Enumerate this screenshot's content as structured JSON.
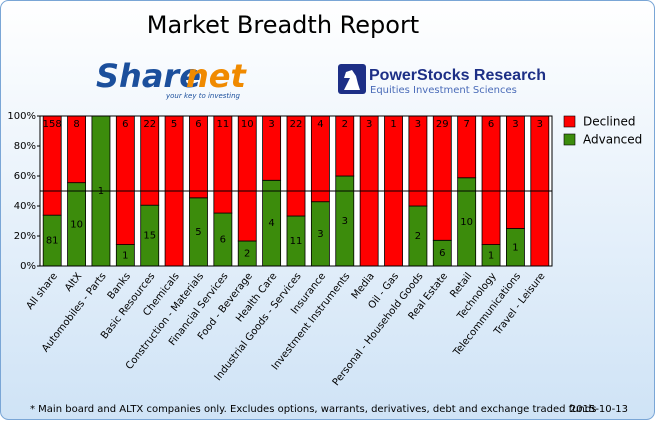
{
  "chart_data": {
    "type": "bar",
    "stacking": "percent",
    "title": "Market Breadth Report",
    "categories": [
      "All share",
      "AltX",
      "Automobiles - Parts",
      "Banks",
      "Basic Resources",
      "Chemicals",
      "Construction - Materials",
      "Financial Services",
      "Food - Beverage",
      "Health Care",
      "Industrial Goods - Services",
      "Insurance",
      "Investment Instruments",
      "Media",
      "Oil - Gas",
      "Personal - Household Goods",
      "Real Estate",
      "Retail",
      "Technology",
      "Telecommunications",
      "Travel - Leisure"
    ],
    "series": [
      {
        "name": "Advanced",
        "color": "#3c8c0c",
        "values": [
          81,
          10,
          1,
          1,
          15,
          0,
          5,
          6,
          2,
          4,
          11,
          3,
          3,
          0,
          0,
          2,
          6,
          10,
          1,
          1,
          0
        ]
      },
      {
        "name": "Declined",
        "color": "#ff0000",
        "values": [
          158,
          8,
          0,
          6,
          22,
          5,
          6,
          11,
          10,
          3,
          22,
          4,
          2,
          3,
          1,
          3,
          29,
          7,
          6,
          3,
          3
        ]
      }
    ],
    "ylim": [
      0,
      100
    ],
    "yticks": [
      {
        "value": 0,
        "label": "0%"
      },
      {
        "value": 20,
        "label": "20%"
      },
      {
        "value": 40,
        "label": "40%"
      },
      {
        "value": 60,
        "label": "60%"
      },
      {
        "value": 80,
        "label": "80%"
      },
      {
        "value": 100,
        "label": "100%"
      }
    ],
    "grid": false,
    "reference_line": 50,
    "legend": "right"
  },
  "logos": {
    "sharenet": {
      "part1": "Share",
      "part2": "net",
      "tagline": "your key to investing"
    },
    "powerstocks": {
      "name": "PowerStocks  Research",
      "tagline": "Equities Investment Sciences"
    }
  },
  "footer": {
    "note": "* Main board and ALTX companies only. Excludes options, warrants, derivatives, debt and exchange traded funds",
    "date": "2015-10-13"
  }
}
